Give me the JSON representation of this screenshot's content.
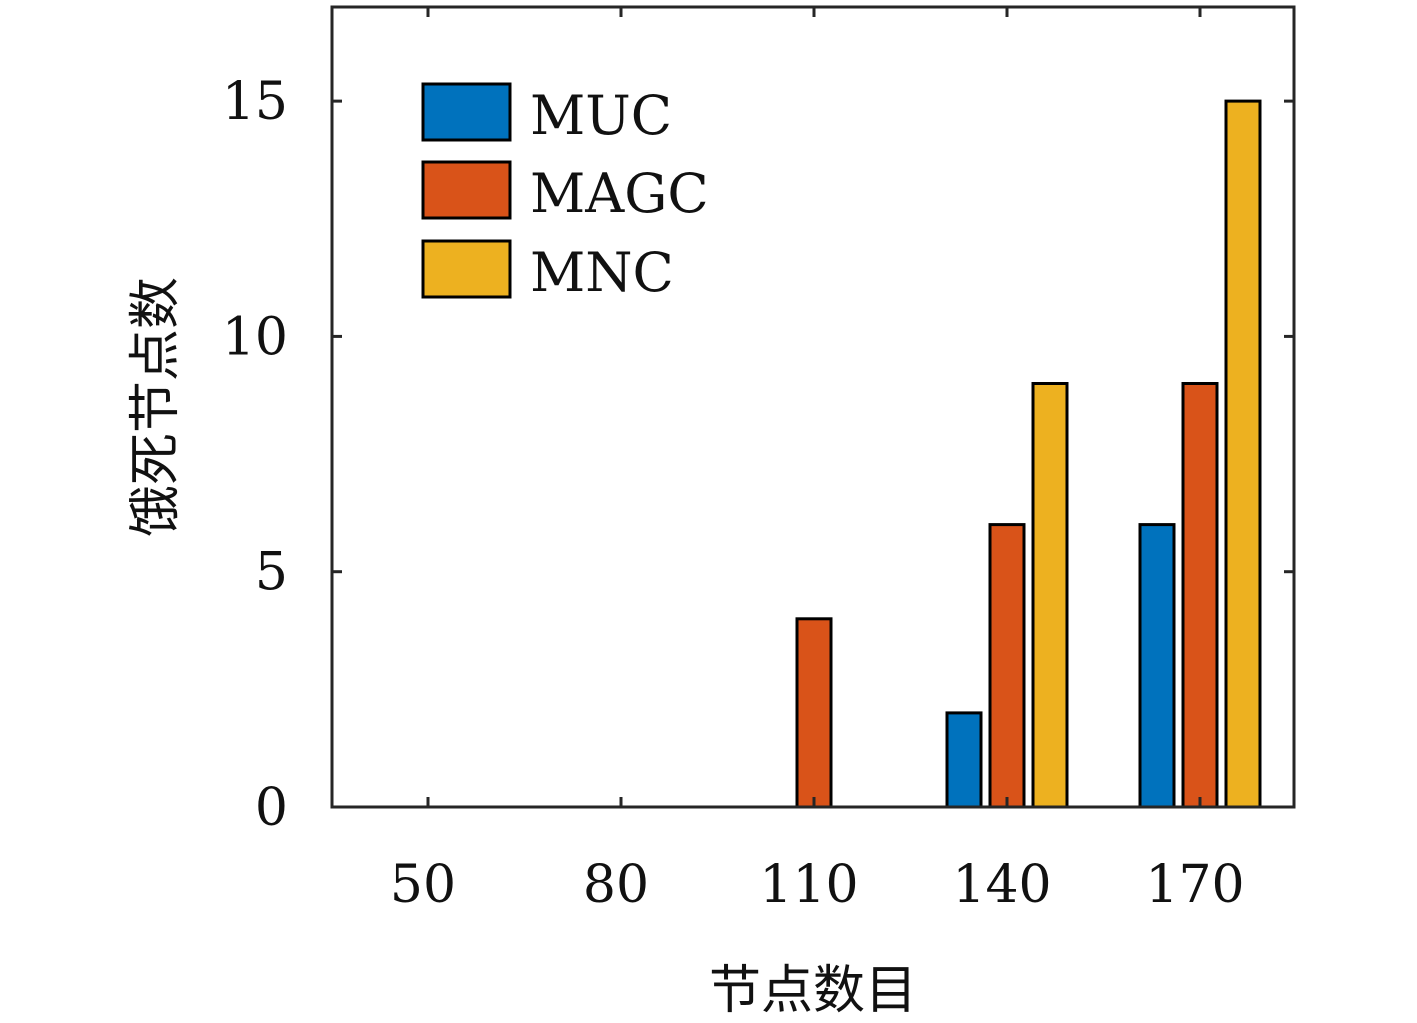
{
  "chart_data": {
    "type": "bar",
    "categories": [
      "50",
      "80",
      "110",
      "140",
      "170"
    ],
    "series": [
      {
        "name": "MUC",
        "values": [
          0,
          0,
          0,
          2,
          6
        ],
        "color": "#0072BD"
      },
      {
        "name": "MAGC",
        "values": [
          0,
          0,
          4,
          6,
          9
        ],
        "color": "#D95319"
      },
      {
        "name": "MNC",
        "values": [
          0,
          0,
          0,
          9,
          15
        ],
        "color": "#EDB120"
      }
    ],
    "xlabel": "节点数目",
    "ylabel": "饿死节点数",
    "ylim": [
      0,
      17
    ],
    "yticks": [
      0,
      5,
      10,
      15
    ],
    "grid": false,
    "legend_position": "top-left"
  }
}
